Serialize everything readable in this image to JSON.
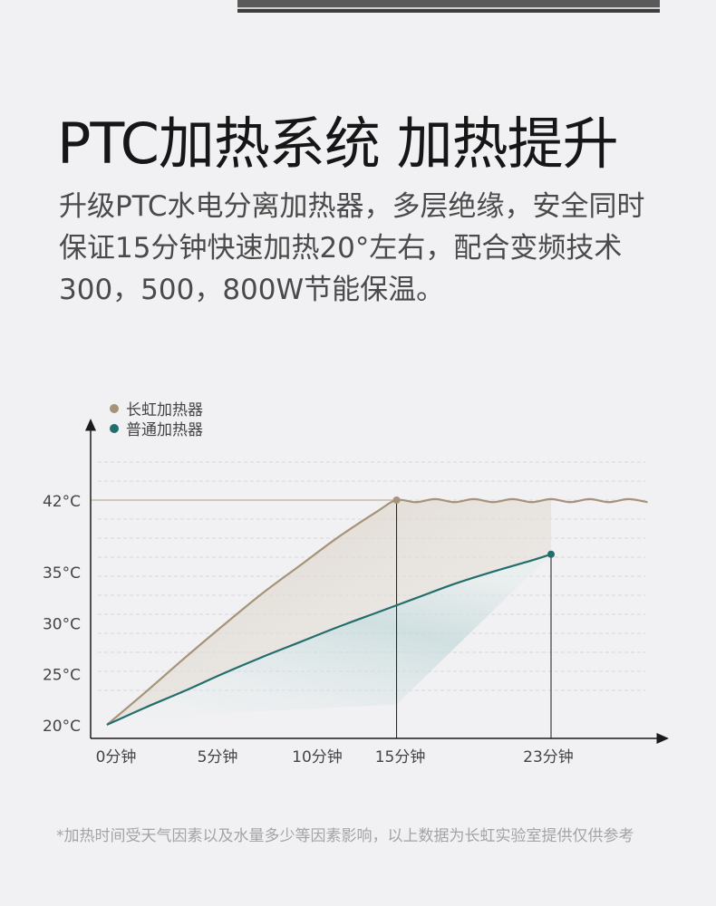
{
  "header": {
    "title": "PTC加热系统 加热提升",
    "description": "升级PTC水电分离加热器，多层绝缘，安全同时保证15分钟快速加热20°左右，配合变频技术300，500，800W节能保温。"
  },
  "chart_data": {
    "type": "line",
    "x_ticks": [
      {
        "value": 0,
        "label": "0分钟"
      },
      {
        "value": 5,
        "label": "5分钟"
      },
      {
        "value": 10,
        "label": "10分钟"
      },
      {
        "value": 15,
        "label": "15分钟"
      },
      {
        "value": 23,
        "label": "23分钟"
      }
    ],
    "y_ticks": [
      {
        "value": 20,
        "label": "20°C"
      },
      {
        "value": 25,
        "label": "25°C"
      },
      {
        "value": 30,
        "label": "30°C"
      },
      {
        "value": 35,
        "label": "35°C"
      },
      {
        "value": 42,
        "label": "42°C"
      }
    ],
    "xlim": [
      0,
      28
    ],
    "ylim": [
      19,
      44
    ],
    "grid": true,
    "legend_position": "top-left",
    "series": [
      {
        "name": "长虹加热器",
        "color": "#a6937a",
        "x": [
          0,
          2,
          4,
          6,
          8,
          10,
          12,
          14,
          15,
          16,
          17,
          18,
          19,
          20,
          21,
          22,
          23,
          24,
          25,
          26,
          27,
          28
        ],
        "y": [
          20,
          23.2,
          26.5,
          29.7,
          32.8,
          35.6,
          38.4,
          40.9,
          42,
          41.8,
          42.1,
          41.8,
          42.1,
          41.8,
          42.1,
          41.8,
          42.1,
          41.8,
          42.1,
          41.8,
          42.1,
          41.8
        ],
        "highlight": {
          "x": 15,
          "y": 42
        }
      },
      {
        "name": "普通加热器",
        "color": "#236e6c",
        "x": [
          0,
          2,
          4,
          6,
          8,
          10,
          12,
          14,
          16,
          18,
          20,
          22,
          23
        ],
        "y": [
          20,
          21.7,
          23.3,
          25,
          26.6,
          28.1,
          29.6,
          31,
          32.4,
          33.8,
          35,
          36.1,
          36.7
        ],
        "highlight": {
          "x": 23,
          "y": 36.7
        }
      }
    ],
    "reference_line_y": 42
  },
  "footnote": "*加热时间受天气因素以及水量多少等因素影响，以上数据为长虹实验室提供仅供参考"
}
